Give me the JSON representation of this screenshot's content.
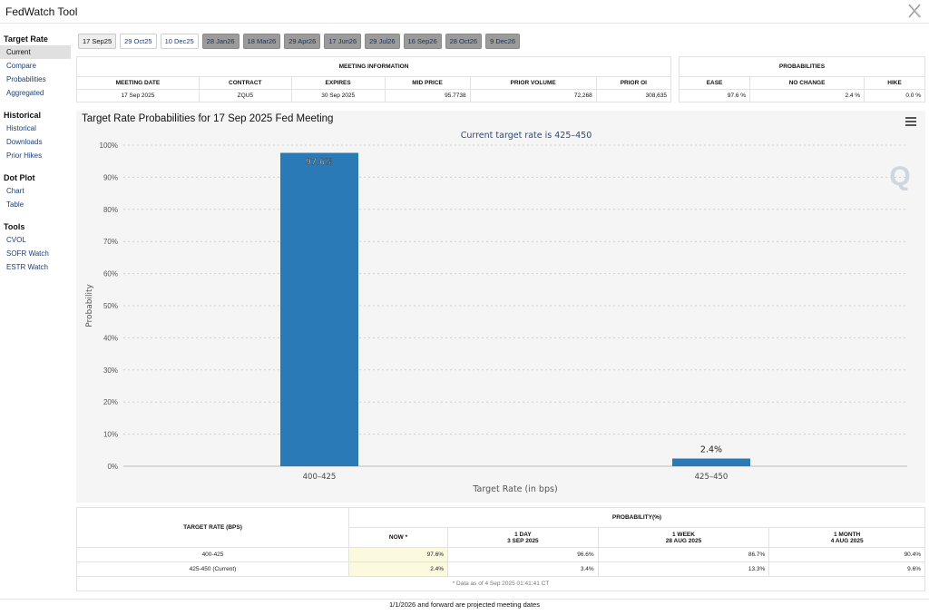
{
  "app": {
    "title": "FedWatch Tool"
  },
  "sidebar": {
    "sections": [
      {
        "heading": "Target Rate",
        "items": [
          "Current",
          "Compare",
          "Probabilities",
          "Aggregated"
        ]
      },
      {
        "heading": "Historical",
        "items": [
          "Historical",
          "Downloads",
          "Prior Hikes"
        ]
      },
      {
        "heading": "Dot Plot",
        "items": [
          "Chart",
          "Table"
        ]
      },
      {
        "heading": "Tools",
        "items": [
          "CVOL",
          "SOFR Watch",
          "ESTR Watch"
        ]
      }
    ],
    "active": "Current"
  },
  "tabs": [
    {
      "label": "17 Sep25",
      "state": "active"
    },
    {
      "label": "29 Oct25",
      "state": "light"
    },
    {
      "label": "10 Dec25",
      "state": "light"
    },
    {
      "label": "28 Jan26",
      "state": "dark"
    },
    {
      "label": "18 Mar26",
      "state": "dark"
    },
    {
      "label": "29 Apr26",
      "state": "dark"
    },
    {
      "label": "17 Jun26",
      "state": "dark"
    },
    {
      "label": "29 Jul26",
      "state": "dark"
    },
    {
      "label": "16 Sep26",
      "state": "dark"
    },
    {
      "label": "28 Oct26",
      "state": "dark"
    },
    {
      "label": "9 Dec26",
      "state": "dark"
    }
  ],
  "meeting_info": {
    "title": "MEETING INFORMATION",
    "columns": [
      "MEETING DATE",
      "CONTRACT",
      "EXPIRES",
      "MID PRICE",
      "PRIOR VOLUME",
      "PRIOR OI"
    ],
    "values": [
      "17 Sep 2025",
      "ZQU5",
      "30 Sep 2025",
      "95.7738",
      "72,268",
      "308,635"
    ]
  },
  "probabilities": {
    "title": "PROBABILITIES",
    "columns": [
      "EASE",
      "NO CHANGE",
      "HIKE"
    ],
    "values": [
      "97.6 %",
      "2.4 %",
      "0.0 %"
    ]
  },
  "chart": {
    "heading": "Target Rate Probabilities for 17 Sep 2025 Fed Meeting",
    "menu_icon": "hamburger-menu-icon",
    "bar_color": "#2a7ab8"
  },
  "chart_data": {
    "type": "bar",
    "title": "Current target rate is 425–450",
    "xlabel": "Target Rate (in bps)",
    "ylabel": "Probability",
    "categories": [
      "400–425",
      "425–450"
    ],
    "values": [
      97.6,
      2.4
    ],
    "data_labels": [
      "97.6%",
      "2.4%"
    ],
    "ylim": [
      0,
      100
    ],
    "yticks": [
      0,
      10,
      20,
      30,
      40,
      50,
      60,
      70,
      80,
      90,
      100
    ],
    "ytick_labels": [
      "0%",
      "10%",
      "20%",
      "30%",
      "40%",
      "50%",
      "60%",
      "70%",
      "80%",
      "90%",
      "100%"
    ],
    "grid": true
  },
  "prob_table": {
    "rate_header": "TARGET RATE (BPS)",
    "group_header": "PROBABILITY(%)",
    "columns": [
      {
        "line1": "NOW",
        "line2": ""
      },
      {
        "line1": "1 DAY",
        "line2": "3 SEP 2025"
      },
      {
        "line1": "1 WEEK",
        "line2": "28 AUG 2025"
      },
      {
        "line1": "1 MONTH",
        "line2": "4 AUG 2025"
      }
    ],
    "rows": [
      {
        "rate": "400-425",
        "values": [
          "97.6%",
          "96.6%",
          "86.7%",
          "90.4%"
        ]
      },
      {
        "rate": "425-450 (Current)",
        "values": [
          "2.4%",
          "3.4%",
          "13.3%",
          "9.6%"
        ]
      }
    ],
    "note": "* Data as of 4 Sep 2025 01:41:41 CT"
  },
  "bottom_note": "1/1/2026 and forward are projected meeting dates"
}
